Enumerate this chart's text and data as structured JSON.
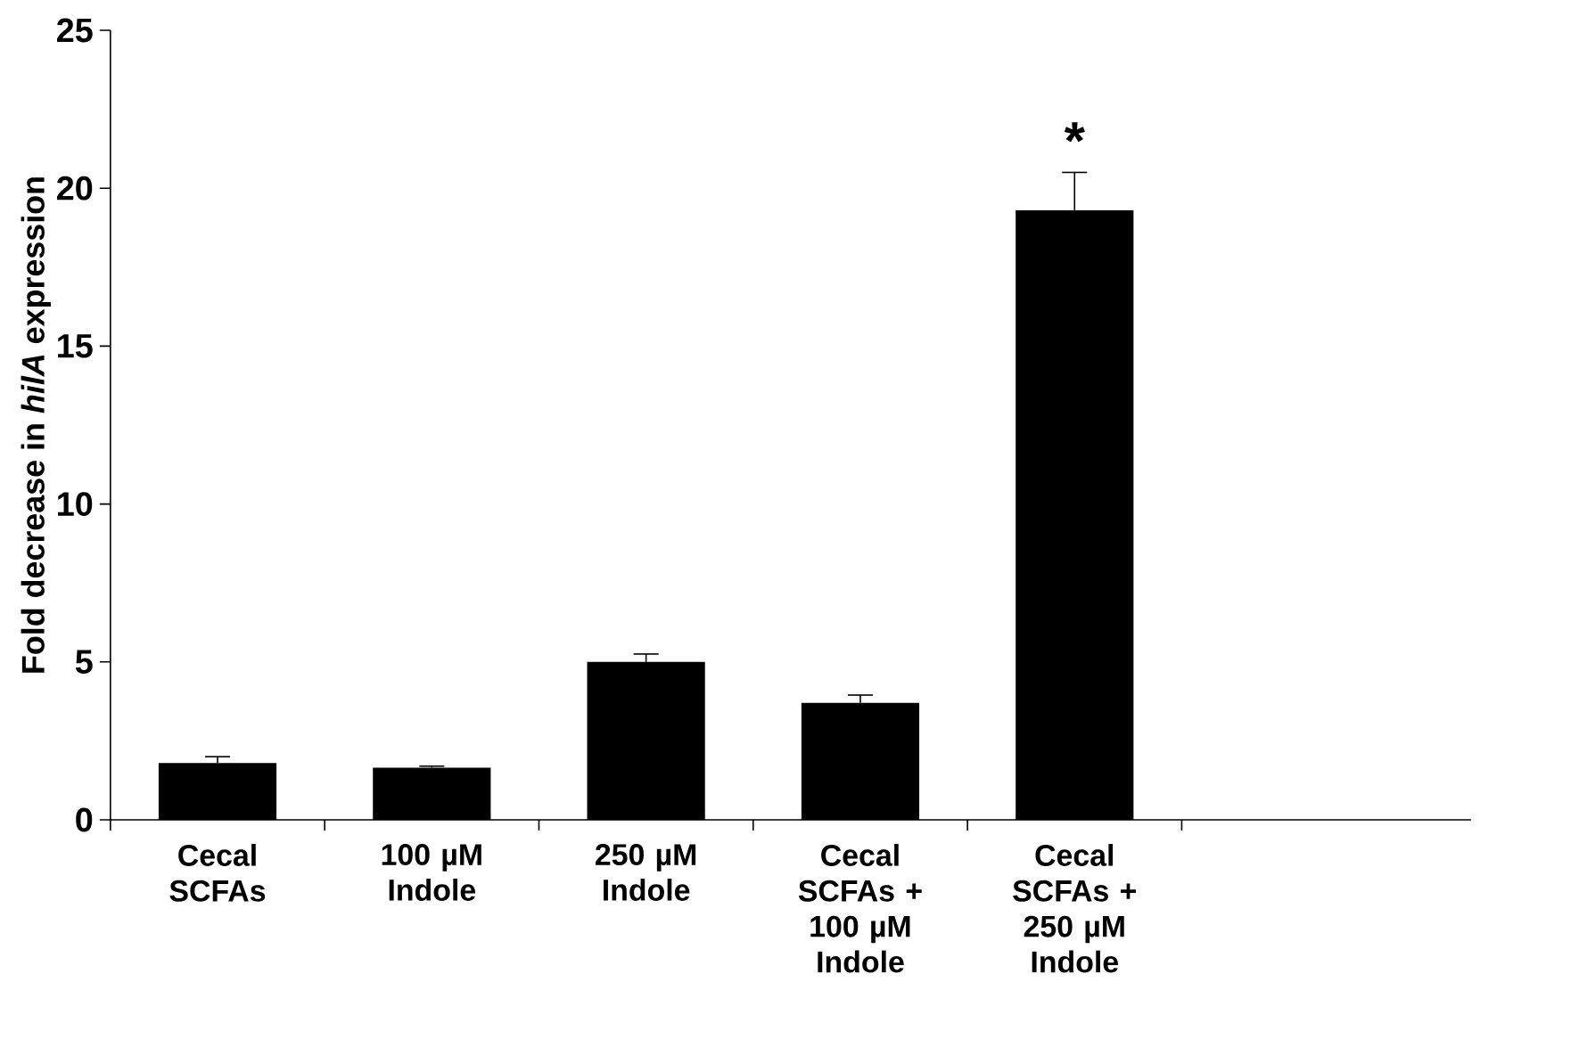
{
  "chart_data": {
    "type": "bar",
    "ylabel": "Fold decrease in *hilA* expression",
    "categories": [
      "Cecal SCFAs",
      "100 µM Indole",
      "250 µM Indole",
      "Cecal SCFAs + 100 µM Indole",
      "Cecal SCFAs + 250 µM Indole"
    ],
    "values": [
      1.8,
      1.65,
      5.0,
      3.7,
      19.3
    ],
    "errors": [
      0.2,
      0.05,
      0.25,
      0.25,
      1.2
    ],
    "color": "#000000",
    "ylim": [
      0,
      25
    ],
    "yticks": [
      0,
      5,
      10,
      15,
      20,
      25
    ],
    "grid": false,
    "annotations": [
      "*"
    ]
  }
}
